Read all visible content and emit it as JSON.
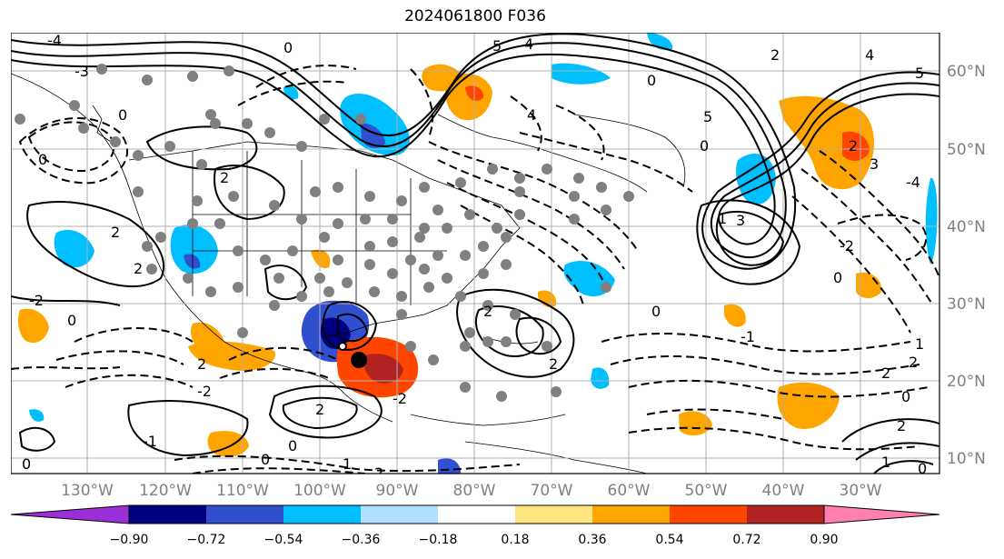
{
  "title": "2024061800 F036",
  "lon_labels": [
    "130°W",
    "120°W",
    "110°W",
    "100°W",
    "90°W",
    "80°W",
    "70°W",
    "60°W",
    "50°W",
    "40°W",
    "30°W"
  ],
  "lat_labels": [
    "60°N",
    "50°N",
    "40°N",
    "30°N",
    "20°N",
    "10°N"
  ],
  "colorbar": {
    "colors": [
      "#9b30d9",
      "#000080",
      "#3050d0",
      "#00bfff",
      "#b0e0ff",
      "#ffffff",
      "#ffe680",
      "#ffa500",
      "#ff4500",
      "#b22222",
      "#ff80b0"
    ],
    "tick_labels": [
      "−0.90",
      "−0.72",
      "−0.54",
      "−0.36",
      "−0.18",
      "0.18",
      "0.36",
      "0.54",
      "0.72",
      "0.90"
    ]
  },
  "contour_labels": {
    "a": "0",
    "b": "2",
    "c": "-2",
    "d": "-1",
    "e": "1",
    "f": "5",
    "g": "3",
    "h": "-4",
    "i": "4",
    "j": "-3"
  }
}
